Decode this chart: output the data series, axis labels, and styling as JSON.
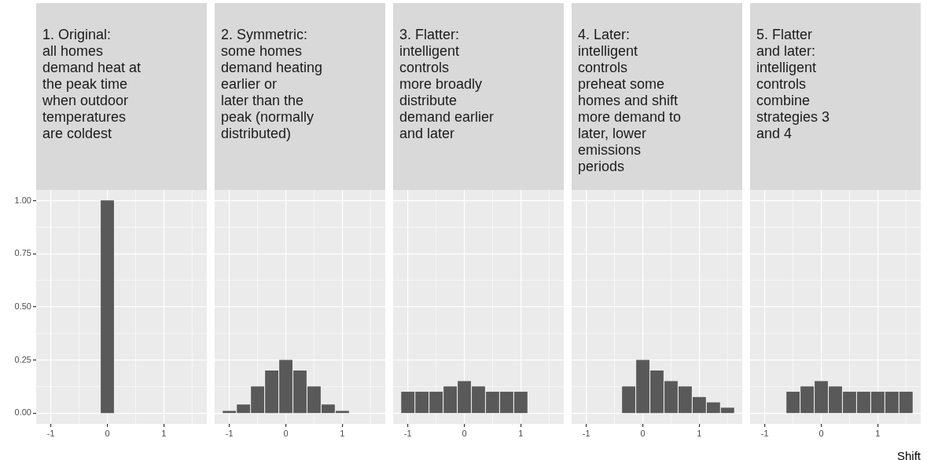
{
  "chart_data": [
    {
      "type": "bar",
      "title": "1. Original:\nall homes\ndemand heat at\nthe peak time\nwhen outdoor\ntemperatures\nare coldest",
      "x": [
        0
      ],
      "values": [
        1.0
      ],
      "color": "#595959",
      "xlim": [
        -1.26,
        1.76
      ],
      "xticks": [
        -1,
        0,
        1
      ],
      "ylim": [
        -0.05,
        1.05
      ],
      "yticks": [
        {
          "value": 0,
          "label": "0.00"
        },
        {
          "value": 0.25,
          "label": "0.25"
        },
        {
          "value": 0.5,
          "label": "0.50"
        },
        {
          "value": 0.75,
          "label": "0.75"
        },
        {
          "value": 1,
          "label": "1.00"
        }
      ],
      "grid": true
    },
    {
      "type": "bar",
      "title": "2. Symmetric:\nsome homes\ndemand heating\nearlier or\nlater than the\npeak (normally\ndistributed)",
      "x": [
        -1,
        -0.75,
        -0.5,
        -0.25,
        0,
        0.25,
        0.5,
        0.75,
        1
      ],
      "values": [
        0.01,
        0.04,
        0.125,
        0.2,
        0.25,
        0.2,
        0.125,
        0.04,
        0.01
      ],
      "color": "#595959",
      "xlim": [
        -1.26,
        1.76
      ],
      "xticks": [
        -1,
        0,
        1
      ],
      "ylim": [
        -0.05,
        1.05
      ],
      "yticks": [
        0,
        0.25,
        0.5,
        0.75,
        1
      ],
      "grid": true,
      "tick_labels": "x"
    },
    {
      "type": "bar",
      "title": "3. Flatter:\nintelligent\ncontrols\nmore broadly\ndistribute\ndemand earlier\nand later",
      "x": [
        -1,
        -0.75,
        -0.5,
        -0.25,
        0,
        0.25,
        0.5,
        0.75,
        1
      ],
      "values": [
        0.1,
        0.1,
        0.1,
        0.125,
        0.15,
        0.125,
        0.1,
        0.1,
        0.1
      ],
      "color": "#595959",
      "xlim": [
        -1.26,
        1.76
      ],
      "xticks": [
        -1,
        0,
        1
      ],
      "ylim": [
        -0.05,
        1.05
      ],
      "yticks": [
        0,
        0.25,
        0.5,
        0.75,
        1
      ],
      "grid": true,
      "tick_labels": "x"
    },
    {
      "type": "bar",
      "title": "4. Later:\nintelligent\ncontrols\npreheat some\nhomes and shift\nmore demand to\nlater, lower\nemissions\nperiods",
      "x": [
        -0.25,
        0,
        0.25,
        0.5,
        0.75,
        1,
        1.25,
        1.5
      ],
      "values": [
        0.125,
        0.25,
        0.2,
        0.15,
        0.125,
        0.075,
        0.05,
        0.025
      ],
      "color": "#595959",
      "xlim": [
        -1.26,
        1.76
      ],
      "xticks": [
        -1,
        0,
        1
      ],
      "ylim": [
        -0.05,
        1.05
      ],
      "yticks": [
        0,
        0.25,
        0.5,
        0.75,
        1
      ],
      "grid": true,
      "tick_labels": "x"
    },
    {
      "type": "bar",
      "title": "5. Flatter\nand later:\nintelligent\ncontrols\ncombine\nstrategies 3\nand 4",
      "x": [
        -0.5,
        -0.25,
        0,
        0.25,
        0.5,
        0.75,
        1,
        1.25,
        1.5
      ],
      "values": [
        0.1,
        0.125,
        0.15,
        0.125,
        0.1,
        0.1,
        0.1,
        0.1,
        0.1
      ],
      "color": "#595959",
      "xlim": [
        -1.26,
        1.76
      ],
      "xticks": [
        -1,
        0,
        1
      ],
      "ylim": [
        -0.05,
        1.05
      ],
      "yticks": [
        0,
        0.25,
        0.5,
        0.75,
        1
      ],
      "grid": true,
      "tick_labels": "x",
      "xlabel": "Shift"
    }
  ]
}
